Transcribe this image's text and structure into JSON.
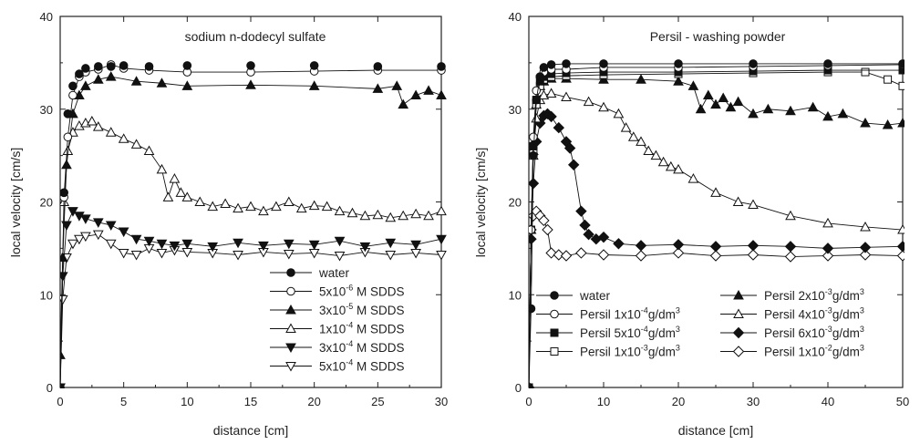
{
  "chart_data": [
    {
      "type": "line",
      "title": "sodium n-dodecyl sulfate",
      "xlabel": "distance [cm]",
      "ylabel": "local velocity [cm/s]",
      "xlim": [
        0,
        30
      ],
      "ylim": [
        0,
        40
      ],
      "xticks": [
        "0",
        "5",
        "10",
        "15",
        "20",
        "25",
        "30"
      ],
      "yticks": [
        "0",
        "10",
        "20",
        "30",
        "40"
      ],
      "legend_position": "bottom-right",
      "series": [
        {
          "name": "water",
          "marker": "circle-filled",
          "line": false,
          "x": [
            0,
            0.3,
            0.6,
            1,
            1.5,
            2,
            3,
            4,
            5,
            7,
            10,
            15,
            20,
            25,
            30
          ],
          "y": [
            0,
            21,
            29.5,
            32.5,
            33.8,
            34.4,
            34.6,
            34.6,
            34.7,
            34.6,
            34.7,
            34.7,
            34.7,
            34.6,
            34.6
          ]
        },
        {
          "name_parts": [
            "5x10",
            "-6",
            " M SDDS"
          ],
          "marker": "circle-open",
          "line": true,
          "x": [
            0,
            0.3,
            0.6,
            1,
            1.5,
            2,
            3,
            4,
            5,
            7,
            10,
            15,
            20,
            25,
            30
          ],
          "y": [
            0,
            20.5,
            27,
            31.5,
            33.5,
            34,
            34.3,
            34.8,
            34.4,
            34.2,
            34,
            34,
            34.1,
            34.2,
            34.2
          ]
        },
        {
          "name_parts": [
            "3x10",
            "-5",
            " M SDDS"
          ],
          "marker": "triangle-up-filled",
          "line": true,
          "x": [
            0,
            0.2,
            0.5,
            1,
            1.5,
            2,
            3,
            4,
            6,
            8,
            10,
            15,
            20,
            25,
            26.5,
            27,
            28,
            29,
            30
          ],
          "y": [
            3.5,
            14,
            24,
            29.5,
            31.5,
            32.5,
            33.2,
            33.5,
            33,
            32.8,
            32.5,
            32.6,
            32.5,
            32.2,
            32.5,
            30.5,
            31.5,
            32,
            31.5
          ]
        },
        {
          "name_parts": [
            "1x10",
            "-4",
            " M SDDS"
          ],
          "marker": "triangle-up-open",
          "line": true,
          "x": [
            0,
            0.3,
            0.6,
            1,
            1.5,
            2,
            2.5,
            3,
            4,
            5,
            6,
            7,
            8,
            8.5,
            9,
            9.5,
            10,
            11,
            12,
            13,
            14,
            15,
            16,
            17,
            18,
            19,
            20,
            21,
            22,
            23,
            24,
            25,
            26,
            27,
            28,
            29,
            30
          ],
          "y": [
            0,
            20,
            25.5,
            27.5,
            28.2,
            28.5,
            28.7,
            28.1,
            27.5,
            26.8,
            26.2,
            25.5,
            23.5,
            20.5,
            22.5,
            21,
            20.5,
            20,
            19.5,
            19.8,
            19.3,
            19.5,
            19,
            19.5,
            20,
            19.3,
            19.6,
            19.5,
            19,
            18.8,
            18.5,
            18.6,
            18.3,
            18.5,
            18.7,
            18.5,
            19
          ]
        },
        {
          "name_parts": [
            "3x10",
            "-4",
            " M SDDS"
          ],
          "marker": "triangle-down-filled",
          "line": true,
          "x": [
            0,
            0.2,
            0.5,
            1,
            1.5,
            2,
            3,
            4,
            5,
            6,
            7,
            8,
            9,
            10,
            12,
            14,
            16,
            18,
            20,
            22,
            24,
            26,
            28,
            30
          ],
          "y": [
            0,
            12,
            17.5,
            19,
            18.5,
            18.2,
            17.8,
            17.5,
            16.8,
            16,
            15.8,
            15.5,
            15.3,
            15.5,
            15.2,
            15.6,
            15.3,
            15.5,
            15.4,
            15.8,
            15.2,
            15.6,
            15.4,
            16
          ]
        },
        {
          "name_parts": [
            "5x10",
            "-4",
            " M SDDS"
          ],
          "marker": "triangle-down-open",
          "line": true,
          "x": [
            0,
            0.2,
            0.5,
            1,
            1.5,
            2,
            3,
            4,
            5,
            6,
            7,
            8,
            9,
            10,
            12,
            14,
            16,
            18,
            20,
            22,
            24,
            26,
            28,
            30
          ],
          "y": [
            0,
            9.5,
            14,
            15.5,
            16,
            16.3,
            16.5,
            15.5,
            14.5,
            14.3,
            15,
            14.5,
            14.8,
            14.6,
            14.5,
            14.3,
            14.6,
            14.4,
            14.5,
            14.2,
            14.6,
            14.3,
            14.5,
            14.3
          ]
        }
      ]
    },
    {
      "type": "line",
      "title": "Persil - washing powder",
      "xlabel": "distance [cm]",
      "ylabel": "local velocity [cm/s]",
      "xlim": [
        0,
        50
      ],
      "ylim": [
        0,
        40
      ],
      "xticks": [
        "0",
        "10",
        "20",
        "30",
        "40",
        "50"
      ],
      "yticks": [
        "0",
        "10",
        "20",
        "30",
        "40"
      ],
      "legend_position": "bottom",
      "series": [
        {
          "name": "water",
          "marker": "circle-filled",
          "line": true,
          "x": [
            0,
            0.3,
            0.6,
            1,
            1.5,
            2,
            3,
            5,
            10,
            20,
            30,
            40,
            50
          ],
          "y": [
            0,
            8.5,
            25,
            31,
            33.5,
            34.5,
            34.8,
            34.9,
            34.9,
            34.9,
            34.9,
            34.9,
            34.9
          ]
        },
        {
          "name_parts": [
            "Persil 1x10",
            "-4",
            "g/dm",
            "3"
          ],
          "marker": "circle-open",
          "line": true,
          "x": [
            0,
            0.3,
            0.6,
            1,
            1.5,
            2,
            3,
            5,
            10,
            20,
            30,
            40,
            50
          ],
          "y": [
            0,
            17,
            27,
            32,
            33.5,
            34,
            34.3,
            34.3,
            34.5,
            34.5,
            34.6,
            34.7,
            34.8
          ]
        },
        {
          "name_parts": [
            "Persil 5x10",
            "-4",
            "g/dm",
            "3"
          ],
          "marker": "square-filled",
          "line": true,
          "x": [
            0,
            0.3,
            0.6,
            1,
            1.5,
            2,
            3,
            5,
            10,
            20,
            30,
            40,
            50
          ],
          "y": [
            0,
            17,
            26,
            31,
            33,
            33.5,
            33.8,
            33.9,
            34,
            34,
            34.1,
            34.2,
            34.2
          ]
        },
        {
          "name_parts": [
            "Persil 1x10",
            "-3",
            "g/dm",
            "3"
          ],
          "marker": "square-open",
          "line": true,
          "x": [
            0,
            0.3,
            0.6,
            1,
            1.5,
            2,
            3,
            5,
            10,
            20,
            30,
            40,
            45,
            48,
            50
          ],
          "y": [
            0,
            17,
            25.5,
            30.5,
            32.5,
            33.2,
            33.5,
            33.6,
            33.7,
            33.8,
            33.9,
            34,
            34,
            33.2,
            32.5
          ]
        },
        {
          "name_parts": [
            "Persil 2x10",
            "-3",
            "g/dm",
            "3"
          ],
          "marker": "triangle-up-filled",
          "line": true,
          "x": [
            0,
            0.3,
            0.6,
            1,
            1.5,
            2,
            3,
            5,
            10,
            15,
            20,
            22,
            23,
            24,
            25,
            26,
            27,
            28,
            30,
            32,
            35,
            38,
            40,
            42,
            45,
            48,
            50
          ],
          "y": [
            0,
            17,
            25.5,
            30.5,
            32.5,
            33,
            33.3,
            33.3,
            33.2,
            33.2,
            33,
            32.5,
            30,
            31.5,
            30.5,
            31.2,
            30.2,
            30.8,
            29.5,
            30,
            29.8,
            30.2,
            29.2,
            29.5,
            28.5,
            28.3,
            28.5
          ]
        },
        {
          "name_parts": [
            "Persil 4x10",
            "-3",
            "g/dm",
            "3"
          ],
          "marker": "triangle-up-open",
          "line": true,
          "x": [
            0,
            0.3,
            0.6,
            1,
            1.5,
            2,
            3,
            5,
            8,
            10,
            12,
            13,
            14,
            15,
            16,
            17,
            18,
            19,
            20,
            22,
            25,
            28,
            30,
            35,
            40,
            45,
            50
          ],
          "y": [
            0,
            17,
            25,
            29,
            31,
            31.5,
            31.7,
            31.3,
            30.8,
            30.2,
            29.5,
            28,
            27,
            26.5,
            25.5,
            25,
            24.3,
            23.8,
            23.5,
            22.5,
            21,
            20,
            19.7,
            18.5,
            17.7,
            17.3,
            17
          ]
        },
        {
          "name_parts": [
            "Persil 6x10",
            "-3",
            "g/dm",
            "3"
          ],
          "marker": "diamond-filled",
          "line": true,
          "x": [
            0,
            0.3,
            0.6,
            1,
            1.5,
            2,
            2.5,
            3,
            4,
            5,
            5.5,
            6,
            7,
            7.5,
            8,
            9,
            10,
            12,
            15,
            20,
            25,
            30,
            35,
            40,
            45,
            50
          ],
          "y": [
            0,
            16,
            22,
            26.5,
            28.5,
            29.3,
            29.5,
            29.2,
            28,
            26.5,
            25.8,
            24,
            19,
            17.5,
            16.5,
            16,
            16.2,
            15.5,
            15.3,
            15.4,
            15.2,
            15.3,
            15.2,
            15,
            15.1,
            15.2
          ]
        },
        {
          "name_parts": [
            "Persil 1x10",
            "-2",
            "g/dm",
            "3"
          ],
          "marker": "diamond-open",
          "line": true,
          "x": [
            0,
            0.3,
            0.6,
            1,
            1.5,
            2,
            2.5,
            3,
            4,
            5,
            7,
            10,
            15,
            20,
            25,
            30,
            35,
            40,
            45,
            50
          ],
          "y": [
            0,
            17,
            18.5,
            19,
            18.5,
            18,
            17,
            14.5,
            14.3,
            14.2,
            14.5,
            14.3,
            14.2,
            14.5,
            14.2,
            14.3,
            14.1,
            14.2,
            14.3,
            14.2
          ]
        }
      ]
    }
  ]
}
